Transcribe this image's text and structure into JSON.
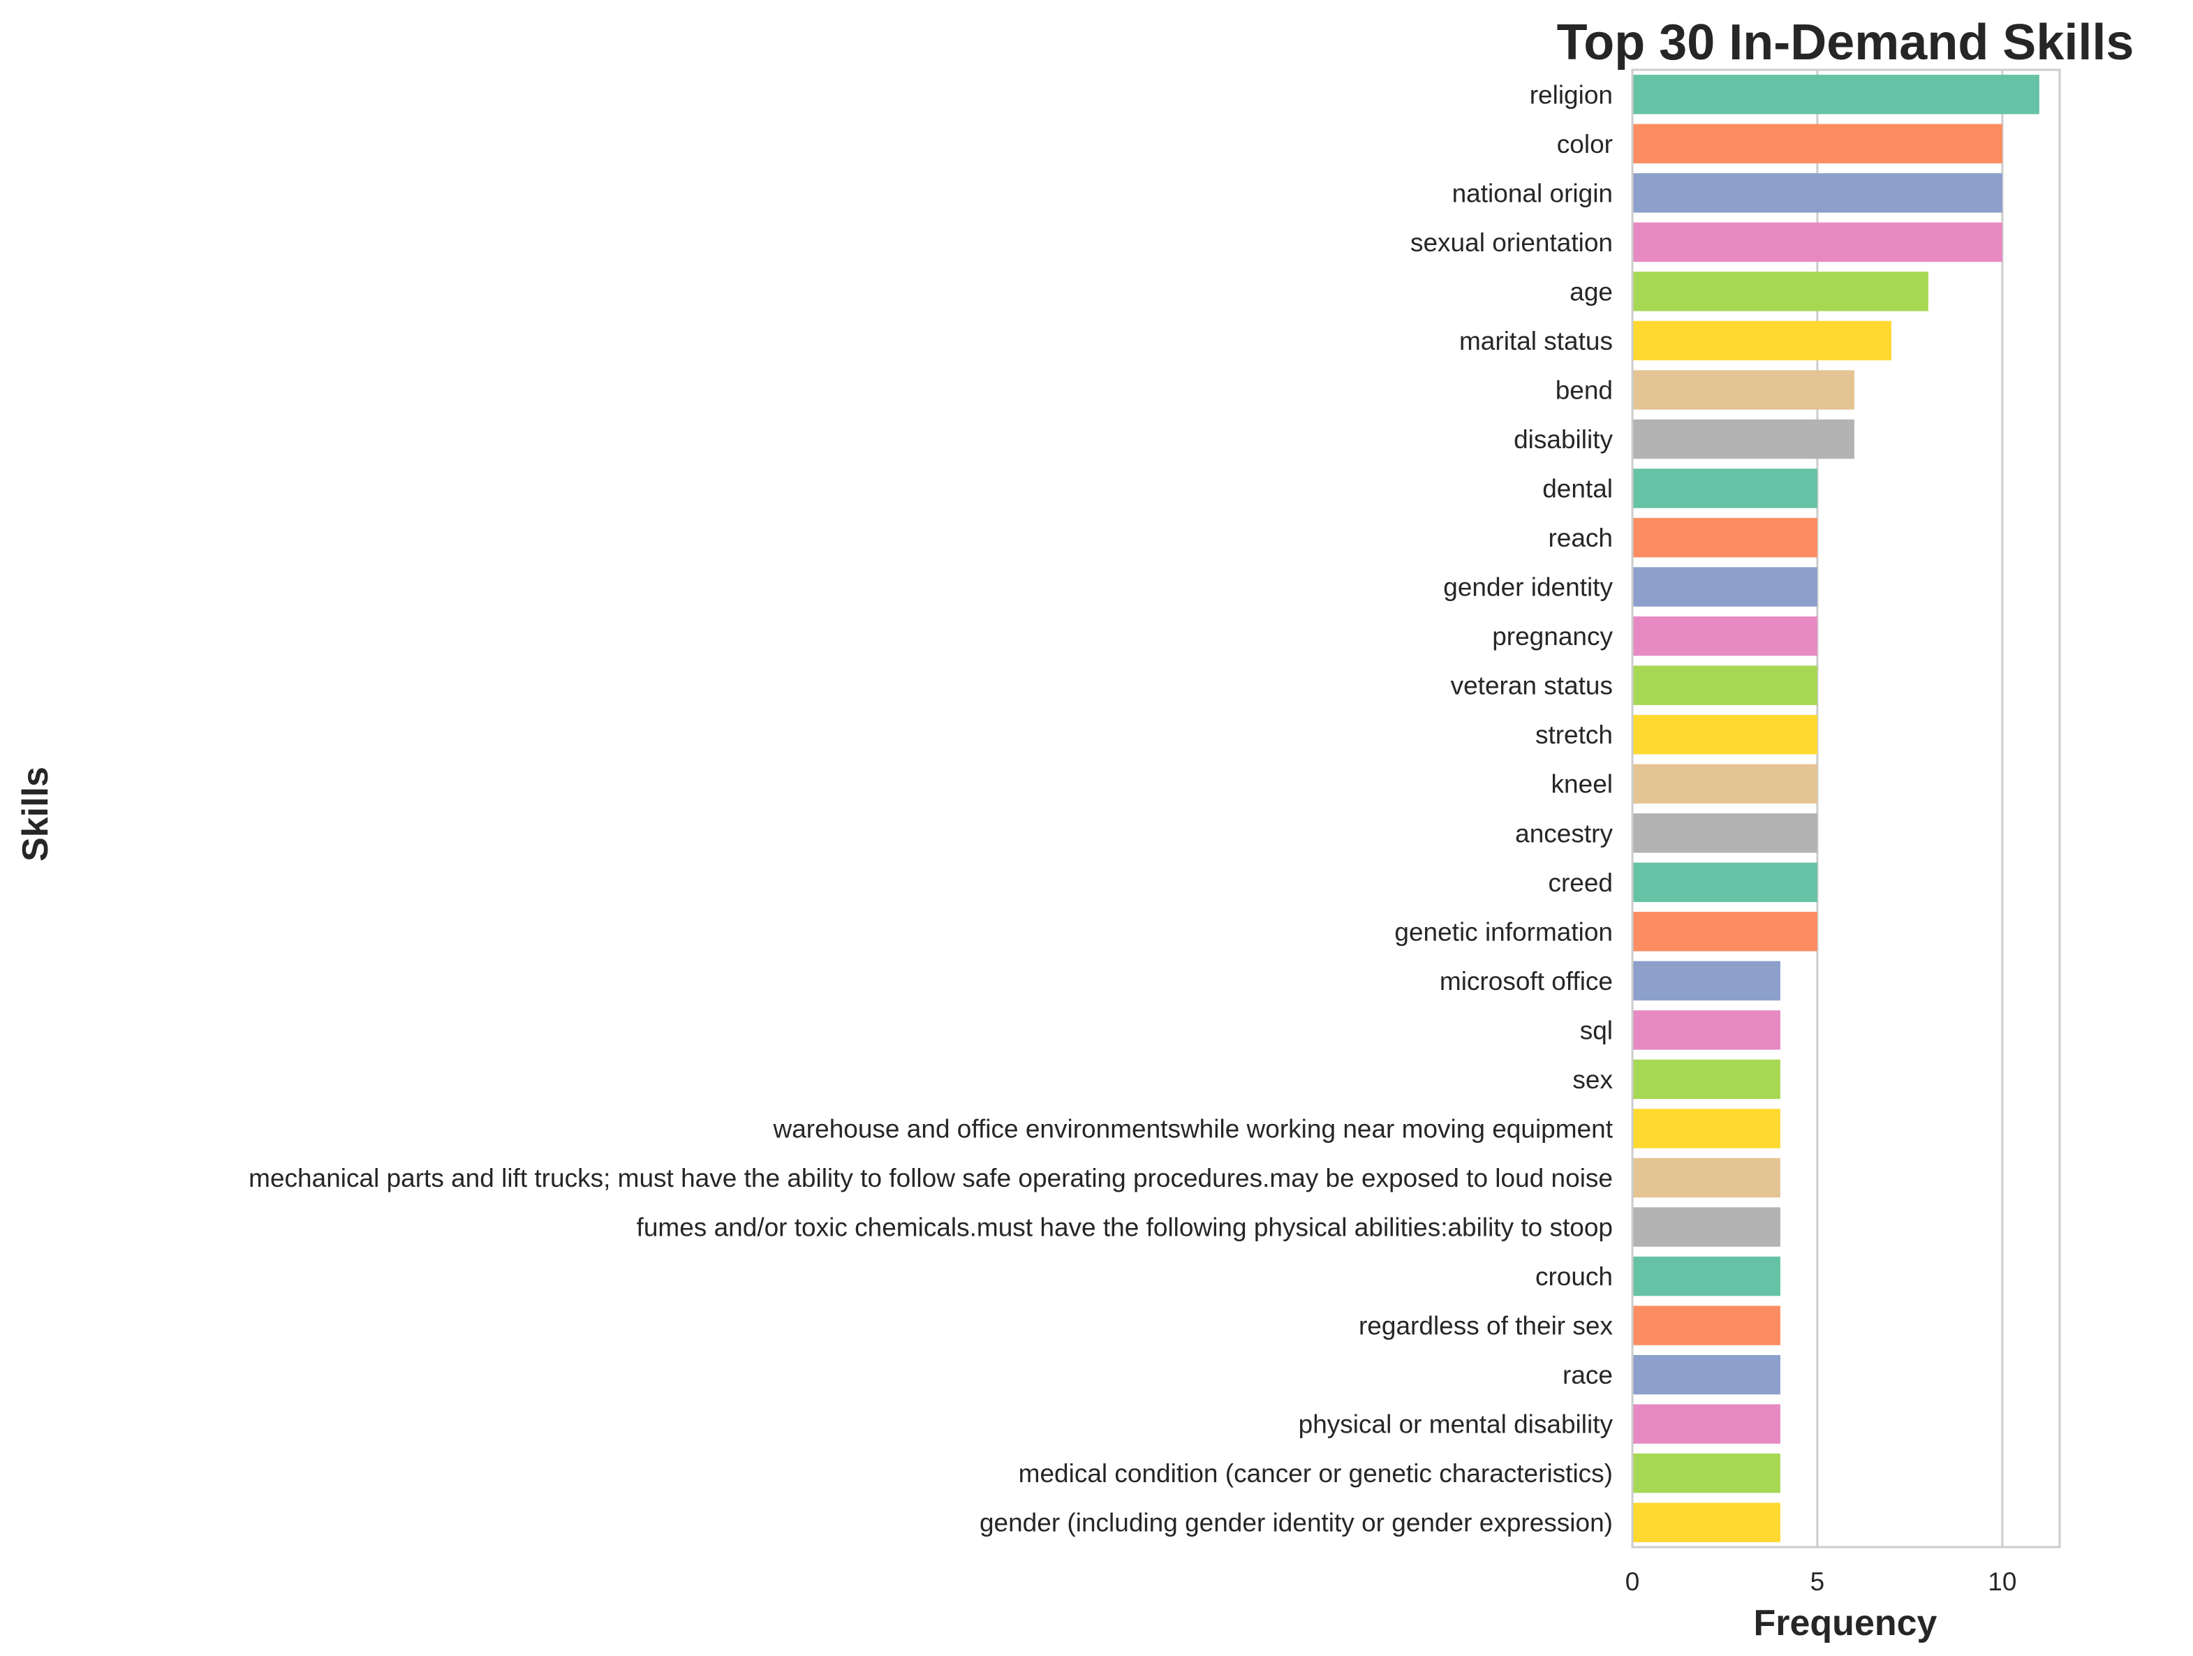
{
  "chart_data": {
    "type": "bar",
    "orientation": "horizontal",
    "title": "Top 30 In-Demand Skills",
    "xlabel": "Frequency",
    "ylabel": "Skills",
    "xlim": [
      0,
      11.55
    ],
    "xticks": [
      0,
      5,
      10
    ],
    "grid": true,
    "categories": [
      "religion",
      "color",
      "national origin",
      "sexual orientation",
      "age",
      "marital status",
      "bend",
      "disability",
      "dental",
      "reach",
      "gender identity",
      "pregnancy",
      "veteran status",
      "stretch",
      "kneel",
      "ancestry",
      "creed",
      "genetic information",
      "microsoft office",
      "sql",
      "sex",
      "warehouse and office environmentswhile working near moving equipment",
      "mechanical parts and lift trucks; must have the ability to follow safe operating procedures.may be exposed to loud noise",
      "fumes and/or toxic chemicals.must have the following physical abilities:ability to stoop",
      "crouch",
      "regardless of their sex",
      "race",
      "physical or mental disability",
      "medical condition (cancer or genetic characteristics)",
      "gender (including gender identity or gender expression)"
    ],
    "values": [
      11,
      10,
      10,
      10,
      8,
      7,
      6,
      6,
      5,
      5,
      5,
      5,
      5,
      5,
      5,
      5,
      5,
      5,
      4,
      4,
      4,
      4,
      4,
      4,
      4,
      4,
      4,
      4,
      4,
      4
    ],
    "palette": [
      "#66c2a5",
      "#fc8d62",
      "#8da0cb",
      "#e78ac3",
      "#a6d854",
      "#ffd92f",
      "#e5c494",
      "#b3b3b3"
    ]
  }
}
